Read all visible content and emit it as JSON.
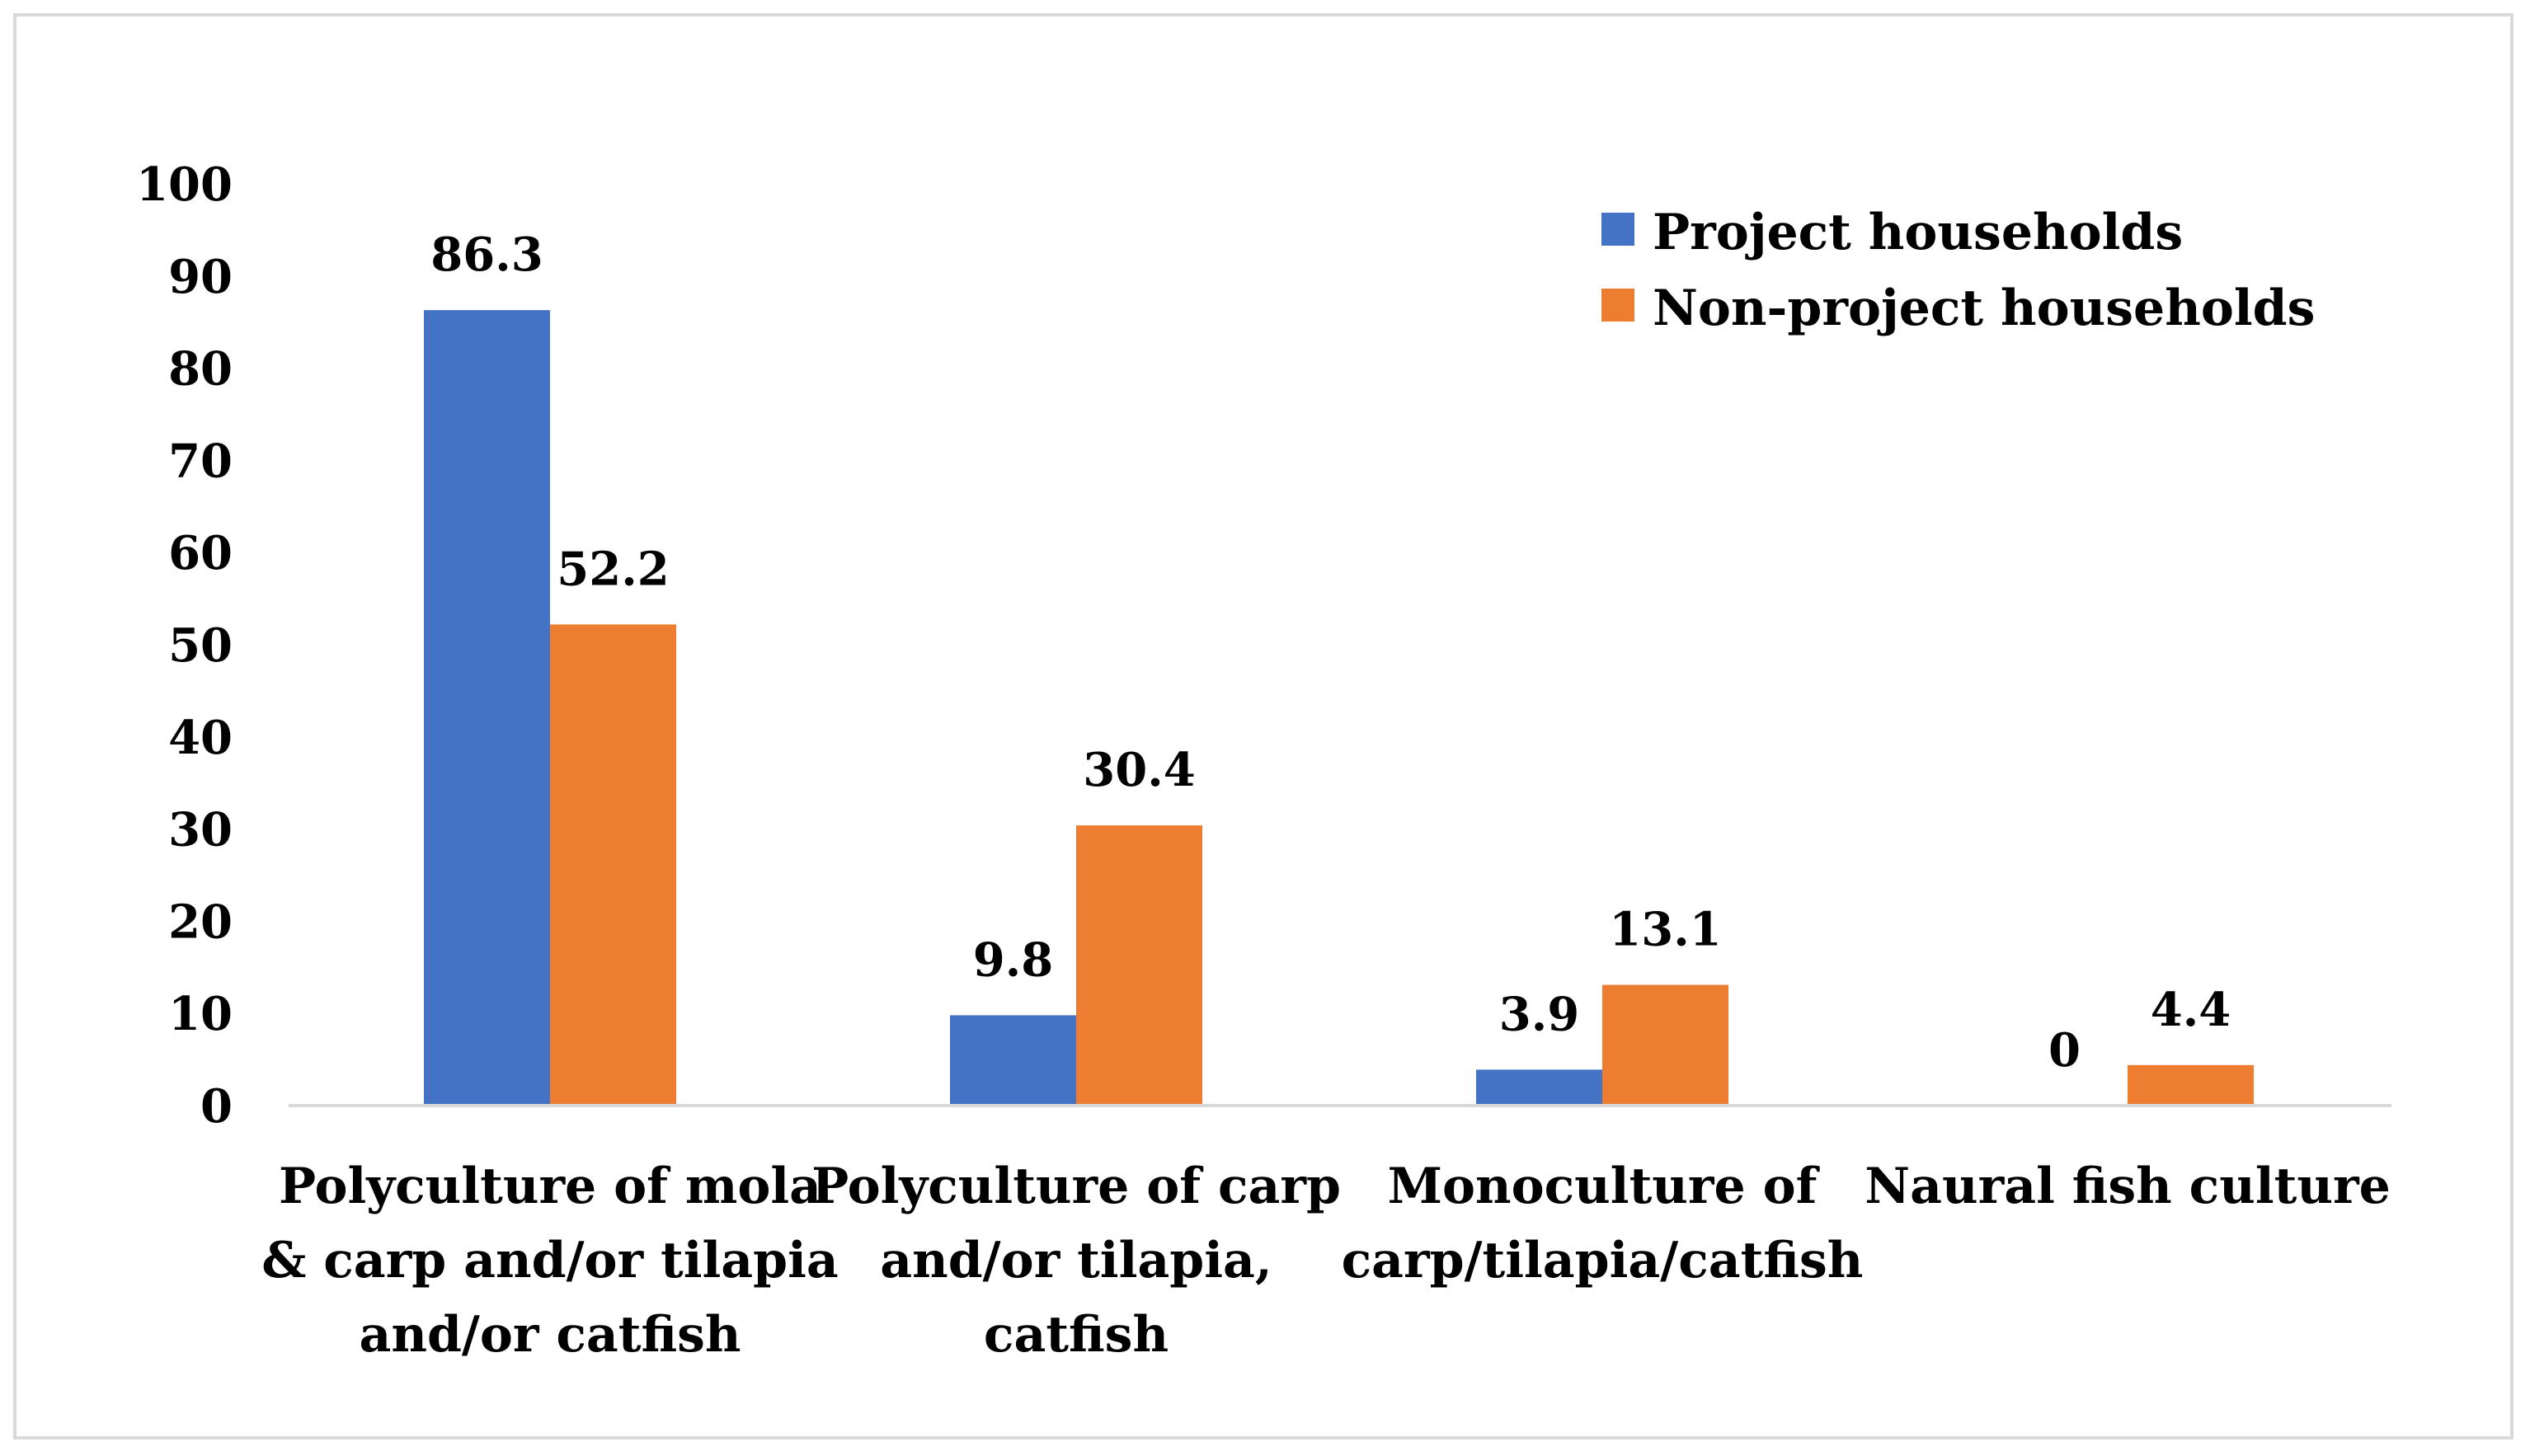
{
  "chart_data": {
    "type": "bar",
    "title": "",
    "xlabel": "",
    "ylabel": "",
    "ylim": [
      0,
      100
    ],
    "yticks": [
      "0",
      "10",
      "20",
      "30",
      "40",
      "50",
      "60",
      "70",
      "80",
      "90",
      "100"
    ],
    "grid": false,
    "legend_position": "top-right",
    "categories": [
      [
        "Polyculture of mola",
        "& carp and/or tilapia",
        "and/or catfish"
      ],
      [
        "Polyculture of carp",
        "and/or tilapia,",
        "catfish"
      ],
      [
        "Monoculture of",
        "carp/tilapia/catfish"
      ],
      [
        "Naural fish culture"
      ]
    ],
    "series": [
      {
        "name": "Project households",
        "color": "#4472c4",
        "values": [
          86.3,
          9.8,
          3.9,
          0
        ],
        "labels": [
          "86.3",
          "9.8",
          "3.9",
          "0"
        ]
      },
      {
        "name": "Non-project households",
        "color": "#ed7d31",
        "values": [
          52.2,
          30.4,
          13.1,
          4.4
        ],
        "labels": [
          "52.2",
          "30.4",
          "13.1",
          "4.4"
        ]
      }
    ]
  }
}
